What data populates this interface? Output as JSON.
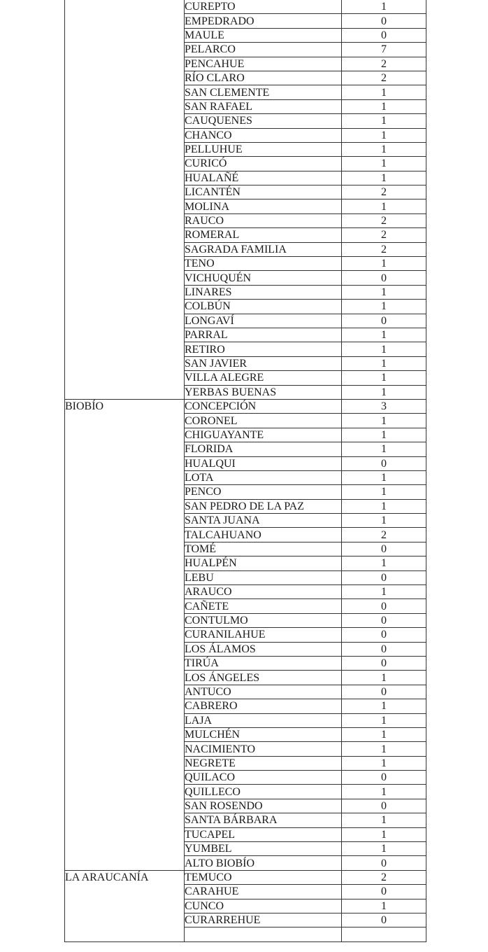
{
  "groups": [
    {
      "region": "",
      "rows": [
        [
          "CUREPTO",
          "1"
        ],
        [
          "EMPEDRADO",
          "0"
        ],
        [
          "MAULE",
          "0"
        ],
        [
          "PELARCO",
          "7"
        ],
        [
          "PENCAHUE",
          "2"
        ],
        [
          "RÍO CLARO",
          "2"
        ],
        [
          "SAN CLEMENTE",
          "1"
        ],
        [
          "SAN RAFAEL",
          "1"
        ],
        [
          "CAUQUENES",
          "1"
        ],
        [
          "CHANCO",
          "1"
        ],
        [
          "PELLUHUE",
          "1"
        ],
        [
          "CURICÓ",
          "1"
        ],
        [
          "HUALAÑÉ",
          "1"
        ],
        [
          "LICANTÉN",
          "2"
        ],
        [
          "MOLINA",
          "1"
        ],
        [
          "RAUCO",
          "2"
        ],
        [
          "ROMERAL",
          "2"
        ],
        [
          "SAGRADA FAMILIA",
          "2"
        ],
        [
          "TENO",
          "1"
        ],
        [
          "VICHUQUÉN",
          "0"
        ],
        [
          "LINARES",
          "1"
        ],
        [
          "COLBÚN",
          "1"
        ],
        [
          "LONGAVÍ",
          "0"
        ],
        [
          "PARRAL",
          "1"
        ],
        [
          "RETIRO",
          "1"
        ],
        [
          "SAN JAVIER",
          "1"
        ],
        [
          "VILLA ALEGRE",
          "1"
        ],
        [
          "YERBAS BUENAS",
          "1"
        ]
      ]
    },
    {
      "region": "BIOBÍO",
      "rows": [
        [
          "CONCEPCIÓN",
          "3"
        ],
        [
          "CORONEL",
          "1"
        ],
        [
          "CHIGUAYANTE",
          "1"
        ],
        [
          "FLORIDA",
          "1"
        ],
        [
          "HUALQUI",
          "0"
        ],
        [
          "LOTA",
          "1"
        ],
        [
          "PENCO",
          "1"
        ],
        [
          "SAN PEDRO DE LA PAZ",
          "1"
        ],
        [
          "SANTA JUANA",
          "1"
        ],
        [
          "TALCAHUANO",
          "2"
        ],
        [
          "TOMÉ",
          "0"
        ],
        [
          "HUALPÉN",
          "1"
        ],
        [
          "LEBU",
          "0"
        ],
        [
          "ARAUCO",
          "1"
        ],
        [
          "CAÑETE",
          "0"
        ],
        [
          "CONTULMO",
          "0"
        ],
        [
          "CURANILAHUE",
          "0"
        ],
        [
          "LOS ÁLAMOS",
          "0"
        ],
        [
          "TIRÚA",
          "0"
        ],
        [
          "LOS ÁNGELES",
          "1"
        ],
        [
          "ANTUCO",
          "0"
        ],
        [
          "CABRERO",
          "1"
        ],
        [
          "LAJA",
          "1"
        ],
        [
          "MULCHÉN",
          "1"
        ],
        [
          "NACIMIENTO",
          "1"
        ],
        [
          "NEGRETE",
          "1"
        ],
        [
          "QUILACO",
          "0"
        ],
        [
          "QUILLECO",
          "1"
        ],
        [
          "SAN ROSENDO",
          "0"
        ],
        [
          "SANTA BÁRBARA",
          "1"
        ],
        [
          "TUCAPEL",
          "1"
        ],
        [
          "YUMBEL",
          "1"
        ],
        [
          "ALTO BIOBÍO",
          "0"
        ]
      ]
    },
    {
      "region": "LA ARAUCANÍA",
      "rows": [
        [
          "TEMUCO",
          "2"
        ],
        [
          "CARAHUE",
          "0"
        ],
        [
          "CUNCO",
          "1"
        ],
        [
          "CURARREHUE",
          "0"
        ],
        [
          "",
          ""
        ]
      ]
    }
  ]
}
